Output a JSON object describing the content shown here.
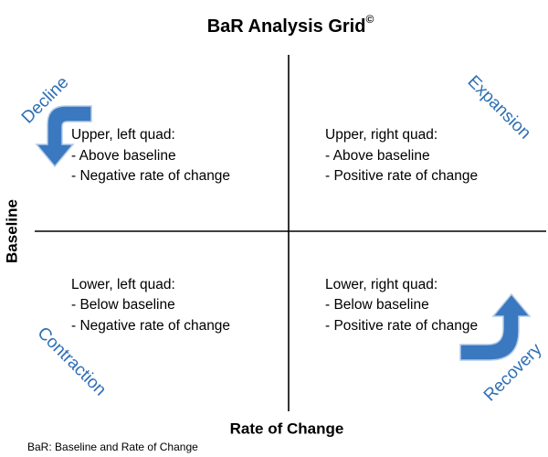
{
  "title": "BaR Analysis Grid",
  "title_mark": "©",
  "y_axis_label": "Baseline",
  "x_axis_label": "Rate of Change",
  "footnote": "BaR: Baseline and Rate of Change",
  "quadrants": [
    {
      "name": "Decline",
      "heading": "Upper, left quad:",
      "lines": [
        "- Above baseline",
        "- Negative rate of change"
      ]
    },
    {
      "name": "Expansion",
      "heading": "Upper, right quad:",
      "lines": [
        "- Above baseline",
        "- Positive rate of change"
      ]
    },
    {
      "name": "Contraction",
      "heading": "Lower, left quad:",
      "lines": [
        "- Below baseline",
        "- Negative rate of change"
      ]
    },
    {
      "name": "Recovery",
      "heading": "Lower, right quad:",
      "lines": [
        "- Below baseline",
        "- Positive rate of change"
      ]
    }
  ]
}
